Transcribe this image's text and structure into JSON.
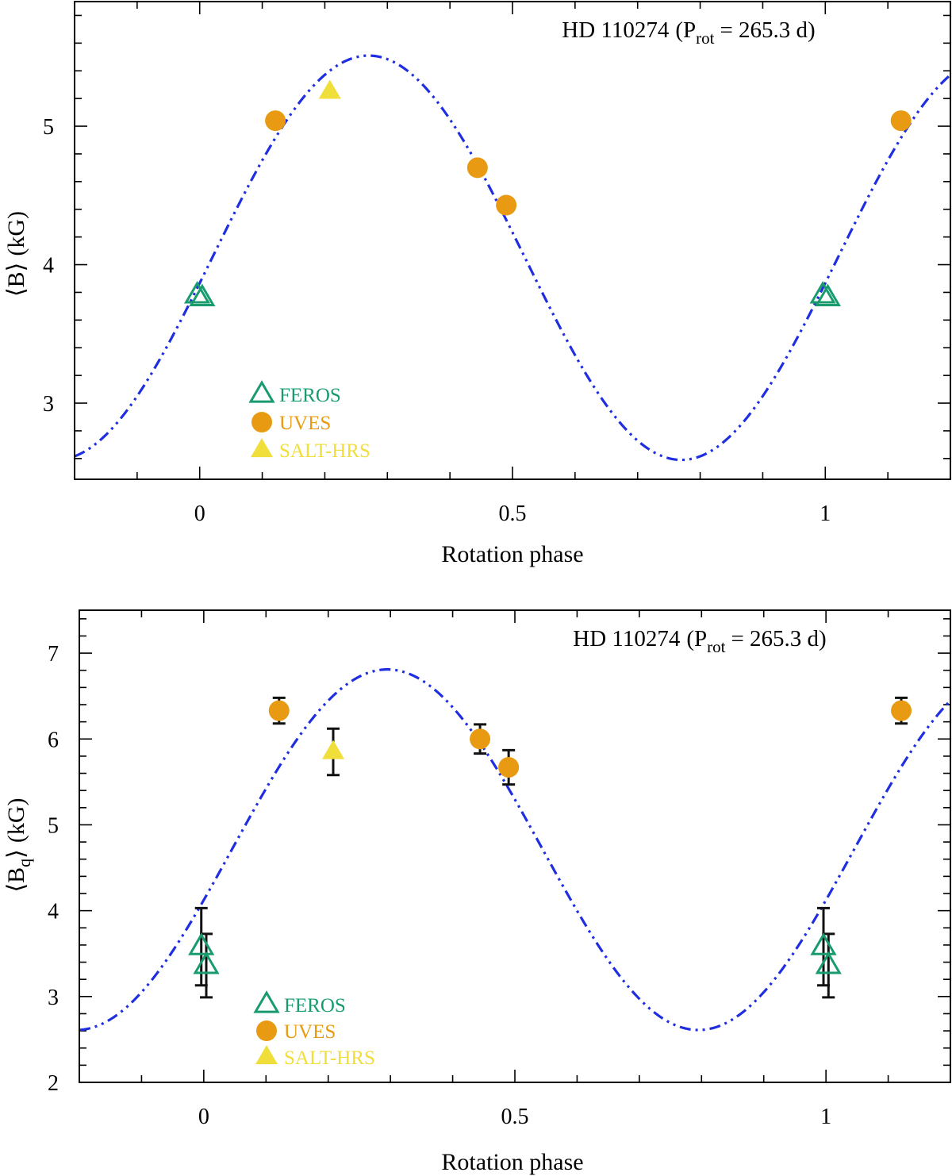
{
  "chart_data": [
    {
      "type": "scatter",
      "title_star": "HD 110274",
      "title_prefix": "(P",
      "title_sub": "rot",
      "title_suffix": "= 265.3 d)",
      "xlabel": "Rotation phase",
      "ylabel_main": "B",
      "ylabel_sub": "",
      "ylabel_unit": "(kG)",
      "xlim": [
        -0.2,
        1.2
      ],
      "ylim": [
        2.45,
        5.9
      ],
      "xticks": [
        0,
        0.5,
        1
      ],
      "xtick_labels": [
        "0",
        "0.5",
        "1"
      ],
      "yticks": [
        3,
        4,
        5
      ],
      "ytick_labels": [
        "3",
        "4",
        "5"
      ],
      "fit_curve": {
        "name": "fit",
        "mean": 4.05,
        "amplitude": 1.46,
        "peak_phase": 0.27,
        "color": "#1f2ee0"
      },
      "series": [
        {
          "name": "FEROS",
          "marker": "open-triangle",
          "color": "#1a9b6e",
          "x": [
            -0.004,
            0.004,
            0.996,
            1.004
          ],
          "y": [
            3.78,
            3.76,
            3.78,
            3.76
          ],
          "err": [
            0,
            0,
            0,
            0
          ]
        },
        {
          "name": "UVES",
          "marker": "circle",
          "color": "#e89b12",
          "x": [
            0.121,
            0.444,
            0.49,
            1.121
          ],
          "y": [
            5.04,
            4.7,
            4.43,
            5.04
          ],
          "err": [
            0,
            0,
            0,
            0
          ]
        },
        {
          "name": "SALT-HRS",
          "marker": "filled-triangle",
          "color": "#f0de3a",
          "x": [
            0.208
          ],
          "y": [
            5.25
          ],
          "err": [
            0
          ]
        }
      ]
    },
    {
      "type": "scatter",
      "title_star": "HD 110274",
      "title_prefix": "(P",
      "title_sub": "rot",
      "title_suffix": "= 265.3 d)",
      "xlabel": "Rotation phase",
      "ylabel_main": "B",
      "ylabel_sub": "q",
      "ylabel_unit": "(kG)",
      "xlim": [
        -0.2,
        1.2
      ],
      "ylim": [
        2.0,
        7.5
      ],
      "xticks": [
        0,
        0.5,
        1
      ],
      "xtick_labels": [
        "0",
        "0.5",
        "1"
      ],
      "yticks": [
        2,
        3,
        4,
        5,
        6,
        7
      ],
      "ytick_labels": [
        "2",
        "3",
        "4",
        "5",
        "6",
        "7"
      ],
      "fit_curve": {
        "name": "fit",
        "mean": 4.71,
        "amplitude": 2.1,
        "peak_phase": 0.295,
        "color": "#1f2ee0"
      },
      "series": [
        {
          "name": "FEROS",
          "marker": "open-triangle",
          "color": "#1a9b6e",
          "x": [
            -0.004,
            0.004,
            0.996,
            1.004
          ],
          "y": [
            3.58,
            3.36,
            3.58,
            3.36
          ],
          "err": [
            0.45,
            0.37,
            0.45,
            0.37
          ]
        },
        {
          "name": "UVES",
          "marker": "circle",
          "color": "#e89b12",
          "x": [
            0.121,
            0.444,
            0.49,
            1.121
          ],
          "y": [
            6.33,
            6.0,
            5.67,
            6.33
          ],
          "err": [
            0.15,
            0.17,
            0.2,
            0.15
          ]
        },
        {
          "name": "SALT-HRS",
          "marker": "filled-triangle",
          "color": "#f0de3a",
          "x": [
            0.208
          ],
          "y": [
            5.85
          ],
          "err": [
            0.27
          ]
        }
      ]
    }
  ]
}
